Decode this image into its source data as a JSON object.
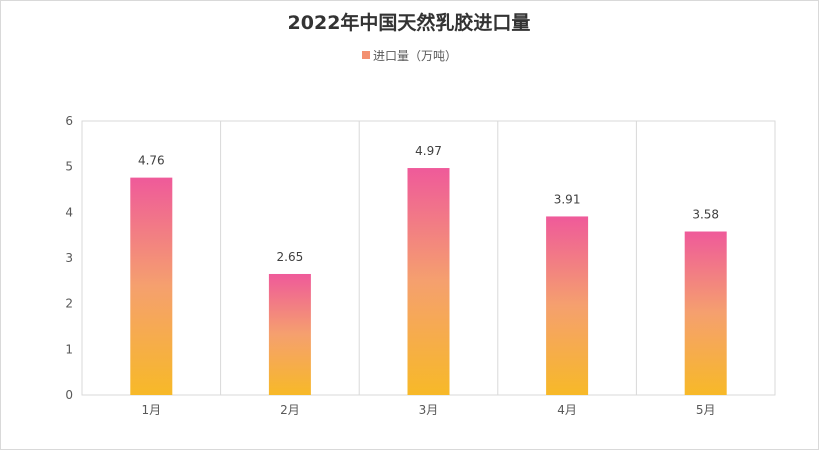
{
  "chart_data": {
    "type": "bar",
    "title": "2022年中国天然乳胶进口量",
    "legend": [
      "进口量（万吨）"
    ],
    "legend_position": "top",
    "categories": [
      "1月",
      "2月",
      "3月",
      "4月",
      "5月"
    ],
    "series": [
      {
        "name": "进口量（万吨）",
        "values": [
          4.76,
          2.65,
          4.97,
          3.91,
          3.58
        ]
      }
    ],
    "data_labels": [
      "4.76",
      "2.65",
      "4.97",
      "3.91",
      "3.58"
    ],
    "y_ticks": [
      "0",
      "1",
      "2",
      "3",
      "4",
      "5",
      "6"
    ],
    "ylim": [
      0,
      6
    ],
    "grid": "vertical category separators",
    "colors": {
      "bar_top": "#ef5a9a",
      "bar_mid": "#f5a06e",
      "bar_bottom": "#f7b928",
      "legend_swatch": "#f39070"
    }
  }
}
